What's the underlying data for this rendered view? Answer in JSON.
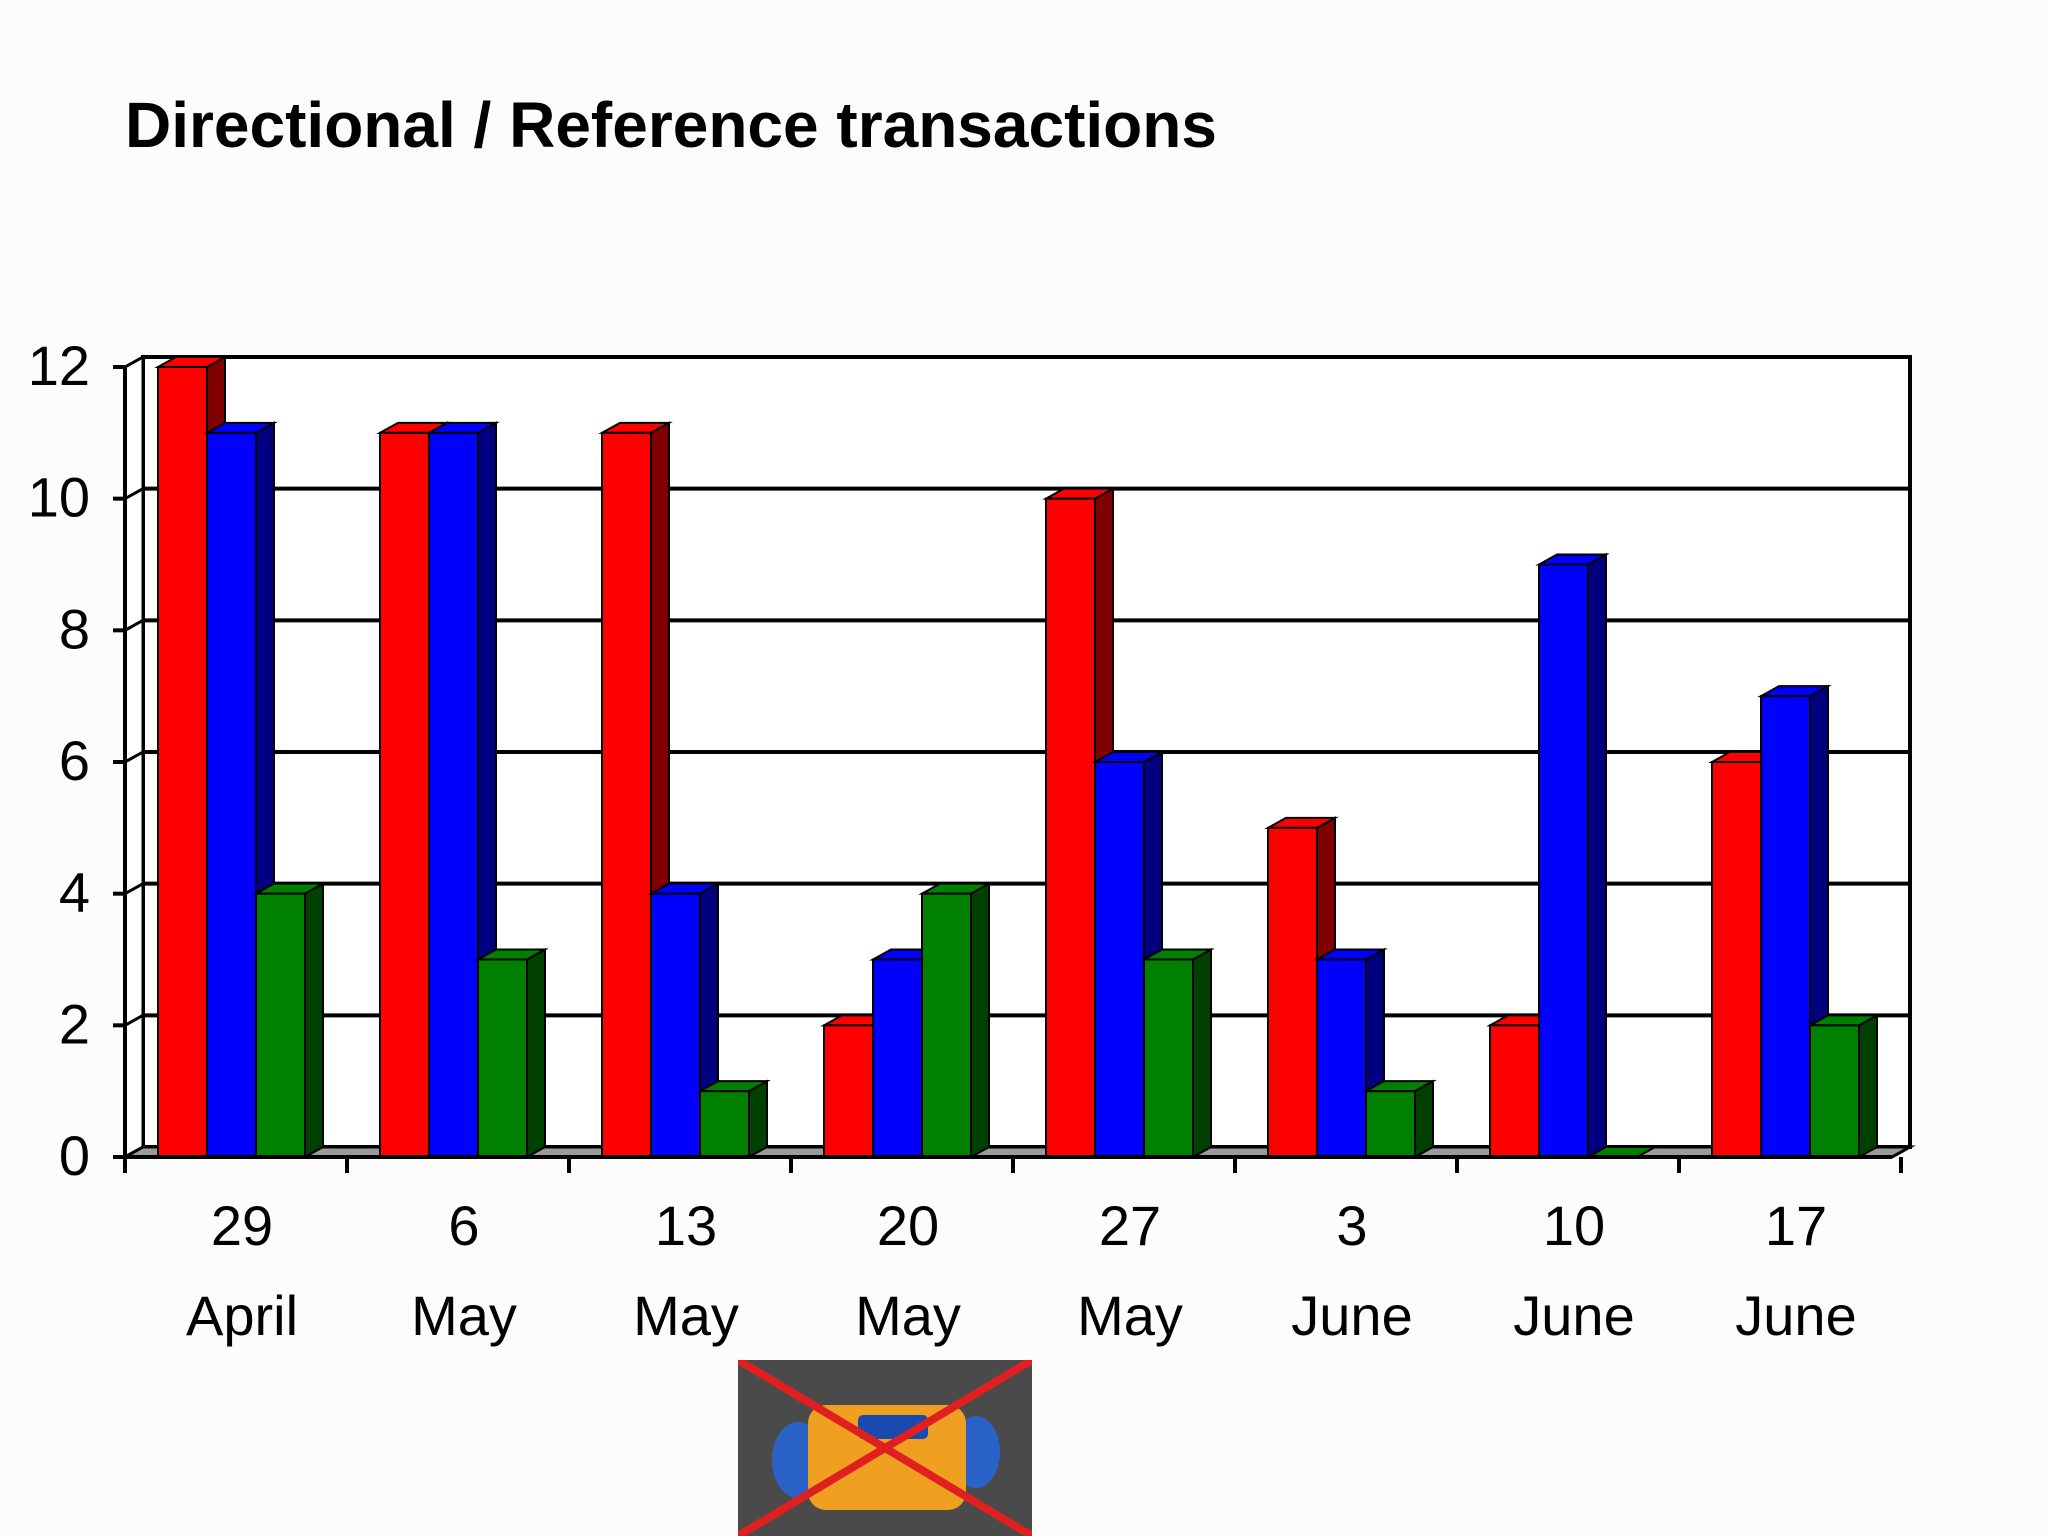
{
  "slide": {
    "title": "Directional / Reference transactions"
  },
  "chart_data": {
    "type": "bar",
    "title": "Directional / Reference transactions",
    "categories": [
      [
        "29",
        "April"
      ],
      [
        "6",
        "May"
      ],
      [
        "13",
        "May"
      ],
      [
        "20",
        "May"
      ],
      [
        "27",
        "May"
      ],
      [
        "3",
        "June"
      ],
      [
        "10",
        "June"
      ],
      [
        "17",
        "June"
      ]
    ],
    "series": [
      {
        "color": "#ff0000",
        "side_color": "#800000",
        "values": [
          12,
          11,
          11,
          2,
          10,
          5,
          2,
          6
        ]
      },
      {
        "color": "#0000ff",
        "side_color": "#000080",
        "values": [
          11,
          11,
          4,
          3,
          6,
          3,
          9,
          7
        ]
      },
      {
        "color": "#008000",
        "side_color": "#004000",
        "values": [
          4,
          3,
          1,
          4,
          3,
          1,
          0,
          2
        ]
      }
    ],
    "ylim": [
      0,
      12
    ],
    "yticks": [
      "0",
      "2",
      "4",
      "6",
      "8",
      "10",
      "12"
    ],
    "grid": true,
    "legend": "none",
    "xlabel": "",
    "ylabel": ""
  },
  "picture": {
    "icon": "crossed-out-candy-icon",
    "colors": {
      "background": "#4a4a4a",
      "cross": "#e02020",
      "wrapper": "#2a62c8",
      "candy": "#f0a020"
    }
  }
}
